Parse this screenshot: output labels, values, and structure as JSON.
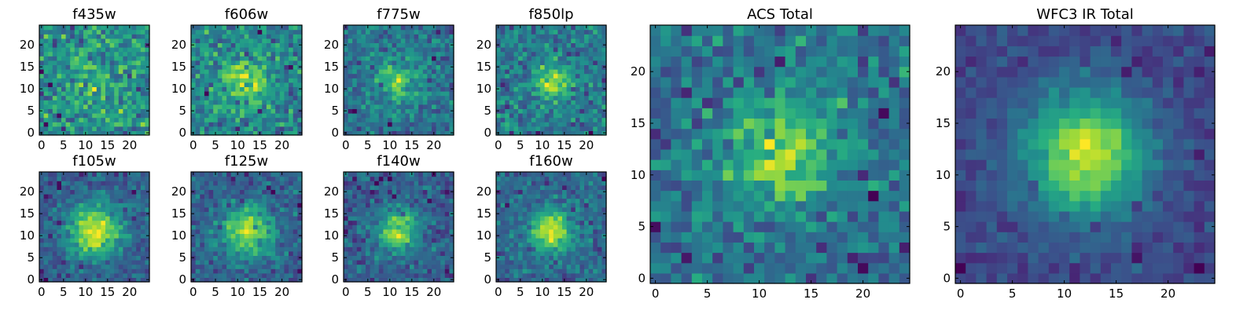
{
  "figure": {
    "colormap": "viridis",
    "background": "#ffffff"
  },
  "chart_data": [
    {
      "type": "heatmap",
      "title": "f435w",
      "grid_size": 25,
      "seed": 11,
      "noise": 0.52,
      "amplitude": 0.12,
      "center": [
        12,
        12
      ],
      "sigma": 4.5,
      "xticks": [
        0,
        5,
        10,
        15,
        20
      ],
      "yticks": [
        0,
        5,
        10,
        15,
        20
      ],
      "xlim": [
        0,
        24
      ],
      "ylim": [
        0,
        24
      ],
      "colormap": "viridis"
    },
    {
      "type": "heatmap",
      "title": "f606w",
      "grid_size": 25,
      "seed": 22,
      "noise": 0.5,
      "amplitude": 0.35,
      "center": [
        12,
        12
      ],
      "sigma": 3.5,
      "xticks": [
        0,
        5,
        10,
        15,
        20
      ],
      "yticks": [
        0,
        5,
        10,
        15,
        20
      ],
      "xlim": [
        0,
        24
      ],
      "ylim": [
        0,
        24
      ],
      "colormap": "viridis"
    },
    {
      "type": "heatmap",
      "title": "f775w",
      "grid_size": 25,
      "seed": 33,
      "noise": 0.48,
      "amplitude": 0.4,
      "center": [
        12,
        12
      ],
      "sigma": 3.5,
      "xticks": [
        0,
        5,
        10,
        15,
        20
      ],
      "yticks": [
        0,
        5,
        10,
        15,
        20
      ],
      "xlim": [
        0,
        24
      ],
      "ylim": [
        0,
        24
      ],
      "colormap": "viridis"
    },
    {
      "type": "heatmap",
      "title": "f850lp",
      "grid_size": 25,
      "seed": 44,
      "noise": 0.48,
      "amplitude": 0.42,
      "center": [
        12,
        12
      ],
      "sigma": 3,
      "xticks": [
        0,
        5,
        10,
        15,
        20
      ],
      "yticks": [
        0,
        5,
        10,
        15,
        20
      ],
      "xlim": [
        0,
        24
      ],
      "ylim": [
        0,
        24
      ],
      "colormap": "viridis"
    },
    {
      "type": "heatmap",
      "title": "f105w",
      "grid_size": 25,
      "seed": 55,
      "noise": 0.3,
      "amplitude": 0.6,
      "center": [
        12,
        11
      ],
      "sigma": 4,
      "xticks": [
        0,
        5,
        10,
        15,
        20
      ],
      "yticks": [
        0,
        5,
        10,
        15,
        20
      ],
      "xlim": [
        0,
        24
      ],
      "ylim": [
        0,
        24
      ],
      "colormap": "viridis"
    },
    {
      "type": "heatmap",
      "title": "f125w",
      "grid_size": 25,
      "seed": 66,
      "noise": 0.35,
      "amplitude": 0.55,
      "center": [
        12,
        11
      ],
      "sigma": 4,
      "xticks": [
        0,
        5,
        10,
        15,
        20
      ],
      "yticks": [
        0,
        5,
        10,
        15,
        20
      ],
      "xlim": [
        0,
        24
      ],
      "ylim": [
        0,
        24
      ],
      "colormap": "viridis"
    },
    {
      "type": "heatmap",
      "title": "f140w",
      "grid_size": 25,
      "seed": 77,
      "noise": 0.38,
      "amplitude": 0.55,
      "center": [
        12,
        11
      ],
      "sigma": 3.5,
      "xticks": [
        0,
        5,
        10,
        15,
        20
      ],
      "yticks": [
        0,
        5,
        10,
        15,
        20
      ],
      "xlim": [
        0,
        24
      ],
      "ylim": [
        0,
        24
      ],
      "colormap": "viridis"
    },
    {
      "type": "heatmap",
      "title": "f160w",
      "grid_size": 25,
      "seed": 88,
      "noise": 0.35,
      "amplitude": 0.6,
      "center": [
        12,
        11
      ],
      "sigma": 3.2,
      "xticks": [
        0,
        5,
        10,
        15,
        20
      ],
      "yticks": [
        0,
        5,
        10,
        15,
        20
      ],
      "xlim": [
        0,
        24
      ],
      "ylim": [
        0,
        24
      ],
      "colormap": "viridis"
    },
    {
      "type": "heatmap",
      "title": "ACS Total",
      "grid_size": 25,
      "seed": 99,
      "noise": 0.45,
      "amplitude": 0.4,
      "center": [
        12,
        12
      ],
      "sigma": 4,
      "xticks": [
        0,
        5,
        10,
        15,
        20
      ],
      "yticks": [
        0,
        5,
        10,
        15,
        20
      ],
      "xlim": [
        0,
        24
      ],
      "ylim": [
        0,
        24
      ],
      "colormap": "viridis"
    },
    {
      "type": "heatmap",
      "title": "WFC3 IR Total",
      "grid_size": 25,
      "seed": 111,
      "noise": 0.22,
      "amplitude": 0.7,
      "center": [
        12,
        12
      ],
      "sigma": 4,
      "xticks": [
        0,
        5,
        10,
        15,
        20
      ],
      "yticks": [
        0,
        5,
        10,
        15,
        20
      ],
      "xlim": [
        0,
        24
      ],
      "ylim": [
        0,
        24
      ],
      "colormap": "viridis"
    }
  ]
}
